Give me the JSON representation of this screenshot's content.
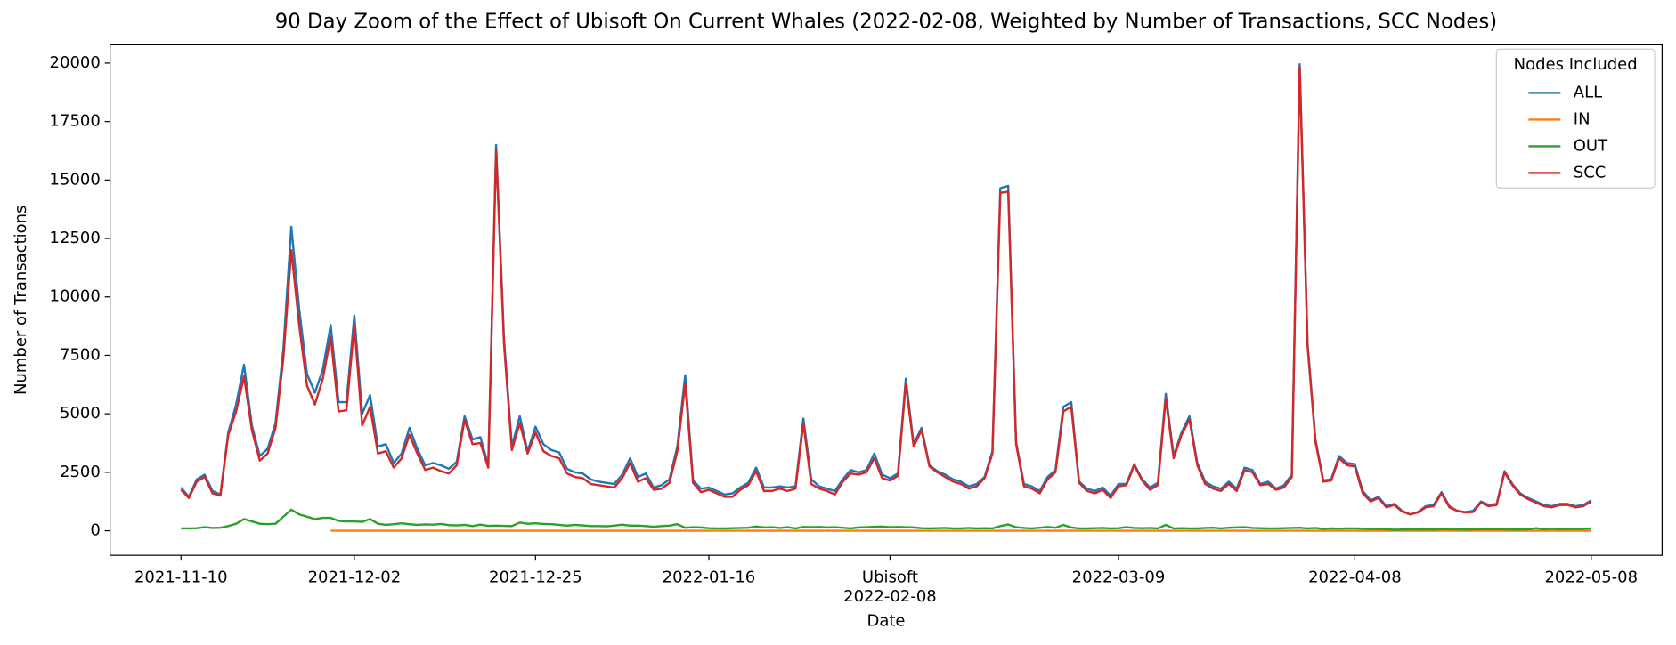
{
  "chart_data": {
    "type": "line",
    "title": "90 Day Zoom of the Effect of Ubisoft On Current Whales (2022-02-08, Weighted by Number of Transactions, SCC Nodes)",
    "x_label": "Date",
    "y_label": "Number of Transactions",
    "legend_title": "Nodes Included",
    "legend_position": "upper right",
    "grid": false,
    "annotations": [
      {
        "text": "Ubisoft",
        "x": "2022-02-08"
      }
    ],
    "x": [
      "2021-11-10",
      "2021-11-11",
      "2021-11-12",
      "2021-11-13",
      "2021-11-14",
      "2021-11-15",
      "2021-11-16",
      "2021-11-17",
      "2021-11-18",
      "2021-11-19",
      "2021-11-20",
      "2021-11-21",
      "2021-11-22",
      "2021-11-23",
      "2021-11-24",
      "2021-11-25",
      "2021-11-26",
      "2021-11-27",
      "2021-11-28",
      "2021-11-29",
      "2021-11-30",
      "2021-12-01",
      "2021-12-02",
      "2021-12-03",
      "2021-12-04",
      "2021-12-05",
      "2021-12-06",
      "2021-12-07",
      "2021-12-08",
      "2021-12-09",
      "2021-12-10",
      "2021-12-11",
      "2021-12-12",
      "2021-12-13",
      "2021-12-14",
      "2021-12-15",
      "2021-12-16",
      "2021-12-17",
      "2021-12-18",
      "2021-12-19",
      "2021-12-20",
      "2021-12-21",
      "2021-12-22",
      "2021-12-23",
      "2021-12-24",
      "2021-12-25",
      "2021-12-26",
      "2021-12-27",
      "2021-12-28",
      "2021-12-29",
      "2021-12-30",
      "2021-12-31",
      "2022-01-01",
      "2022-01-02",
      "2022-01-03",
      "2022-01-04",
      "2022-01-05",
      "2022-01-06",
      "2022-01-07",
      "2022-01-08",
      "2022-01-09",
      "2022-01-10",
      "2022-01-11",
      "2022-01-12",
      "2022-01-13",
      "2022-01-14",
      "2022-01-15",
      "2022-01-16",
      "2022-01-17",
      "2022-01-18",
      "2022-01-19",
      "2022-01-20",
      "2022-01-21",
      "2022-01-22",
      "2022-01-23",
      "2022-01-24",
      "2022-01-25",
      "2022-01-26",
      "2022-01-27",
      "2022-01-28",
      "2022-01-29",
      "2022-01-30",
      "2022-01-31",
      "2022-02-01",
      "2022-02-02",
      "2022-02-03",
      "2022-02-04",
      "2022-02-05",
      "2022-02-06",
      "2022-02-07",
      "2022-02-08",
      "2022-02-09",
      "2022-02-10",
      "2022-02-11",
      "2022-02-12",
      "2022-02-13",
      "2022-02-14",
      "2022-02-15",
      "2022-02-16",
      "2022-02-17",
      "2022-02-18",
      "2022-02-19",
      "2022-02-20",
      "2022-02-21",
      "2022-02-22",
      "2022-02-23",
      "2022-02-24",
      "2022-02-25",
      "2022-02-26",
      "2022-02-27",
      "2022-02-28",
      "2022-03-01",
      "2022-03-02",
      "2022-03-03",
      "2022-03-04",
      "2022-03-05",
      "2022-03-06",
      "2022-03-07",
      "2022-03-08",
      "2022-03-09",
      "2022-03-10",
      "2022-03-11",
      "2022-03-12",
      "2022-03-13",
      "2022-03-14",
      "2022-03-15",
      "2022-03-16",
      "2022-03-17",
      "2022-03-18",
      "2022-03-19",
      "2022-03-20",
      "2022-03-21",
      "2022-03-22",
      "2022-03-23",
      "2022-03-24",
      "2022-03-25",
      "2022-03-26",
      "2022-03-27",
      "2022-03-28",
      "2022-03-29",
      "2022-03-30",
      "2022-03-31",
      "2022-04-01",
      "2022-04-02",
      "2022-04-03",
      "2022-04-04",
      "2022-04-05",
      "2022-04-06",
      "2022-04-07",
      "2022-04-08",
      "2022-04-09",
      "2022-04-10",
      "2022-04-11",
      "2022-04-12",
      "2022-04-13",
      "2022-04-14",
      "2022-04-15",
      "2022-04-16",
      "2022-04-17",
      "2022-04-18",
      "2022-04-19",
      "2022-04-20",
      "2022-04-21",
      "2022-04-22",
      "2022-04-23",
      "2022-04-24",
      "2022-04-25",
      "2022-04-26",
      "2022-04-27",
      "2022-04-28",
      "2022-04-29",
      "2022-04-30",
      "2022-05-01",
      "2022-05-02",
      "2022-05-03",
      "2022-05-04",
      "2022-05-05",
      "2022-05-06",
      "2022-05-07",
      "2022-05-08"
    ],
    "series": [
      {
        "name": "ALL",
        "color": "#1f77b4",
        "values": [
          1850,
          1450,
          2200,
          2400,
          1700,
          1550,
          4200,
          5400,
          7100,
          4500,
          3200,
          3500,
          4600,
          7800,
          13000,
          9500,
          6700,
          5900,
          6900,
          8800,
          5500,
          5500,
          9200,
          5000,
          5800,
          3600,
          3700,
          2900,
          3300,
          4400,
          3500,
          2800,
          2900,
          2800,
          2650,
          2950,
          4900,
          3900,
          4000,
          2800,
          16500,
          8200,
          3600,
          4900,
          3400,
          4450,
          3700,
          3450,
          3350,
          2650,
          2500,
          2450,
          2200,
          2100,
          2050,
          2000,
          2400,
          3100,
          2300,
          2450,
          1850,
          1950,
          2200,
          3600,
          6650,
          2150,
          1800,
          1850,
          1700,
          1550,
          1600,
          1850,
          2050,
          2700,
          1850,
          1850,
          1900,
          1850,
          1900,
          4800,
          2200,
          1900,
          1800,
          1700,
          2200,
          2600,
          2500,
          2600,
          3300,
          2400,
          2250,
          2450,
          6500,
          3700,
          4400,
          2800,
          2550,
          2400,
          2200,
          2100,
          1900,
          2000,
          2300,
          3400,
          14650,
          14750,
          3800,
          2000,
          1900,
          1700,
          2300,
          2600,
          5300,
          5500,
          2100,
          1800,
          1700,
          1850,
          1500,
          2000,
          2000,
          2850,
          2200,
          1850,
          2050,
          5850,
          3200,
          4200,
          4900,
          2900,
          2100,
          1900,
          1800,
          2100,
          1800,
          2700,
          2600,
          2000,
          2100,
          1800,
          1950,
          2400,
          19950,
          8000,
          3900,
          2150,
          2200,
          3200,
          2900,
          2850,
          1700,
          1300,
          1450,
          1050,
          1150,
          850,
          700,
          800,
          1050,
          1100,
          1650,
          1050,
          850,
          800,
          850,
          1250,
          1100,
          1150,
          2550,
          2000,
          1600,
          1400,
          1250,
          1100,
          1050,
          1150,
          1150,
          1050,
          1100,
          1300
        ]
      },
      {
        "name": "IN",
        "color": "#ff7f0e",
        "values": [
          null,
          null,
          null,
          null,
          null,
          null,
          null,
          null,
          null,
          null,
          null,
          null,
          null,
          null,
          null,
          null,
          null,
          null,
          null,
          0,
          0,
          0,
          0,
          0,
          0,
          0,
          0,
          0,
          0,
          0,
          0,
          0,
          0,
          0,
          0,
          0,
          0,
          0,
          0,
          0,
          0,
          0,
          0,
          0,
          0,
          0,
          0,
          0,
          0,
          0,
          0,
          0,
          0,
          0,
          0,
          0,
          0,
          0,
          0,
          0,
          0,
          0,
          0,
          0,
          0,
          0,
          0,
          0,
          0,
          0,
          0,
          0,
          0,
          0,
          0,
          0,
          0,
          0,
          0,
          0,
          0,
          0,
          0,
          0,
          0,
          0,
          0,
          0,
          0,
          0,
          0,
          0,
          0,
          0,
          0,
          0,
          0,
          0,
          0,
          0,
          0,
          0,
          0,
          0,
          0,
          0,
          0,
          0,
          0,
          0,
          0,
          0,
          0,
          0,
          0,
          0,
          0,
          0,
          0,
          0,
          0,
          0,
          0,
          0,
          0,
          0,
          0,
          0,
          0,
          0,
          0,
          0,
          0,
          0,
          0,
          0,
          0,
          0,
          0,
          0,
          0,
          0,
          0,
          0,
          0,
          0,
          0,
          0,
          0,
          0,
          0,
          0,
          0,
          0,
          0,
          0,
          0,
          0,
          0,
          0,
          0,
          0,
          0,
          0,
          0,
          0,
          0,
          0,
          0,
          0,
          0,
          0,
          0,
          0,
          0,
          0,
          0,
          0,
          0,
          0
        ]
      },
      {
        "name": "OUT",
        "color": "#2ca02c",
        "values": [
          100,
          100,
          110,
          150,
          120,
          130,
          200,
          300,
          500,
          400,
          300,
          280,
          300,
          600,
          900,
          700,
          600,
          500,
          550,
          550,
          420,
          400,
          400,
          380,
          500,
          300,
          250,
          280,
          320,
          280,
          250,
          270,
          260,
          290,
          240,
          230,
          250,
          200,
          260,
          210,
          220,
          210,
          200,
          350,
          300,
          320,
          290,
          280,
          250,
          220,
          250,
          230,
          200,
          200,
          190,
          220,
          260,
          220,
          220,
          200,
          170,
          200,
          220,
          280,
          130,
          150,
          140,
          110,
          100,
          100,
          110,
          120,
          130,
          180,
          140,
          150,
          120,
          150,
          100,
          160,
          150,
          160,
          140,
          150,
          130,
          100,
          140,
          150,
          170,
          180,
          150,
          160,
          150,
          140,
          110,
          100,
          110,
          120,
          100,
          100,
          120,
          100,
          110,
          100,
          200,
          270,
          150,
          120,
          100,
          130,
          160,
          130,
          250,
          140,
          100,
          100,
          110,
          120,
          100,
          110,
          150,
          120,
          110,
          120,
          100,
          250,
          100,
          110,
          100,
          100,
          120,
          130,
          100,
          130,
          140,
          150,
          120,
          110,
          100,
          100,
          110,
          120,
          130,
          100,
          120,
          80,
          100,
          90,
          100,
          100,
          90,
          80,
          70,
          60,
          40,
          50,
          60,
          50,
          60,
          50,
          70,
          60,
          60,
          50,
          60,
          70,
          60,
          70,
          60,
          50,
          50,
          60,
          110,
          60,
          90,
          60,
          80,
          70,
          80,
          100
        ]
      },
      {
        "name": "SCC",
        "color": "#d62728",
        "values": [
          1750,
          1400,
          2100,
          2300,
          1600,
          1500,
          4100,
          5100,
          6600,
          4300,
          3000,
          3300,
          4400,
          7400,
          12000,
          8800,
          6200,
          5400,
          6500,
          8300,
          5100,
          5150,
          8800,
          4500,
          5300,
          3300,
          3400,
          2700,
          3100,
          4100,
          3300,
          2600,
          2700,
          2550,
          2450,
          2800,
          4750,
          3700,
          3750,
          2700,
          16300,
          8000,
          3450,
          4600,
          3300,
          4200,
          3400,
          3200,
          3100,
          2450,
          2300,
          2250,
          2000,
          1950,
          1900,
          1850,
          2250,
          2900,
          2100,
          2250,
          1750,
          1800,
          2050,
          3400,
          6300,
          2050,
          1650,
          1750,
          1600,
          1450,
          1450,
          1750,
          1950,
          2550,
          1700,
          1700,
          1800,
          1700,
          1800,
          4600,
          2000,
          1800,
          1700,
          1550,
          2100,
          2450,
          2400,
          2500,
          3100,
          2250,
          2150,
          2350,
          6300,
          3600,
          4300,
          2750,
          2500,
          2300,
          2100,
          2000,
          1800,
          1900,
          2250,
          3300,
          14450,
          14500,
          3700,
          1900,
          1800,
          1600,
          2200,
          2500,
          5100,
          5300,
          2050,
          1700,
          1600,
          1750,
          1400,
          1900,
          1950,
          2800,
          2150,
          1750,
          1950,
          5650,
          3100,
          4100,
          4750,
          2800,
          2000,
          1800,
          1700,
          2000,
          1700,
          2600,
          2500,
          1950,
          2000,
          1750,
          1850,
          2300,
          19850,
          7900,
          3800,
          2100,
          2150,
          3100,
          2800,
          2750,
          1600,
          1250,
          1400,
          1000,
          1100,
          820,
          700,
          780,
          1000,
          1050,
          1600,
          1000,
          850,
          780,
          800,
          1200,
          1050,
          1100,
          2500,
          1950,
          1550,
          1350,
          1200,
          1050,
          1000,
          1100,
          1100,
          1000,
          1050,
          1250
        ]
      }
    ],
    "xlim": [
      "2021-11-01",
      "2022-05-17"
    ],
    "xticks": [
      "2021-11-10",
      "2021-12-02",
      "2021-12-25",
      "2022-01-16",
      "2022-02-08",
      "2022-03-09",
      "2022-04-08",
      "2022-05-08"
    ],
    "ylim": [
      -1050,
      20780
    ],
    "yticks": [
      0,
      2500,
      5000,
      7500,
      10000,
      12500,
      15000,
      17500,
      20000
    ]
  }
}
